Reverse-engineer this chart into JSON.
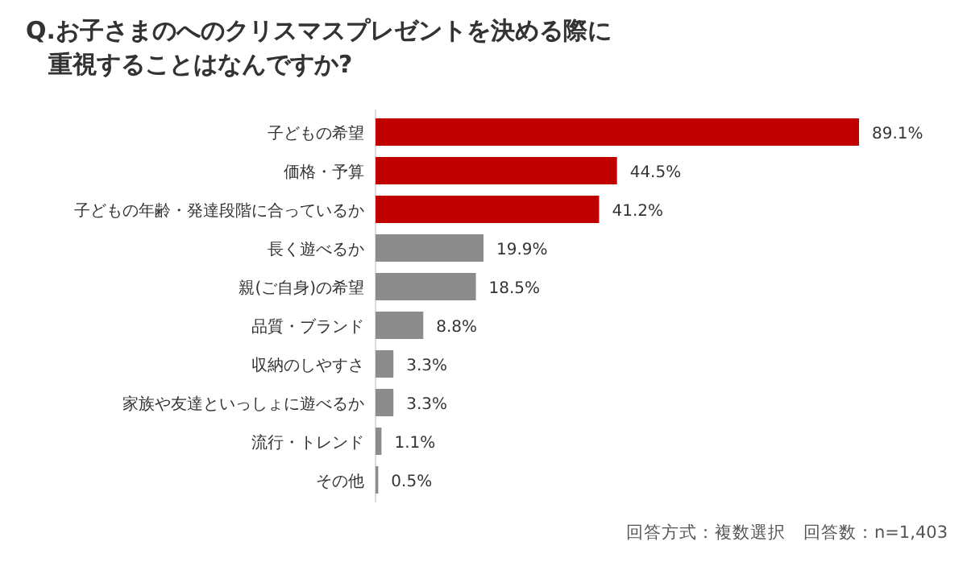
{
  "chart_data": {
    "type": "bar",
    "orientation": "horizontal",
    "title": "Q.お子さまのへのクリスマスプレゼントを決める際に重視することはなんですか?",
    "categories": [
      "子どもの希望",
      "価格・予算",
      "子どもの年齢・発達段階に合っているか",
      "長く遊べるか",
      "親(ご自身)の希望",
      "品質・ブランド",
      "収納のしやすさ",
      "家族や友達といっしょに遊べるか",
      "流行・トレンド",
      "その他"
    ],
    "values": [
      89.1,
      44.5,
      41.2,
      19.9,
      18.5,
      8.8,
      3.3,
      3.3,
      1.1,
      0.5
    ],
    "colors": [
      "#c00000",
      "#c00000",
      "#c00000",
      "#8c8c8c",
      "#8c8c8c",
      "#8c8c8c",
      "#8c8c8c",
      "#8c8c8c",
      "#8c8c8c",
      "#8c8c8c"
    ],
    "value_labels": [
      "89.1%",
      "44.5%",
      "41.2%",
      "19.9%",
      "18.5%",
      "8.8%",
      "3.3%",
      "3.3%",
      "1.1%",
      "0.5%"
    ],
    "annotations": [
      "回答方式：複数選択　回答数：n=1,403"
    ]
  }
}
